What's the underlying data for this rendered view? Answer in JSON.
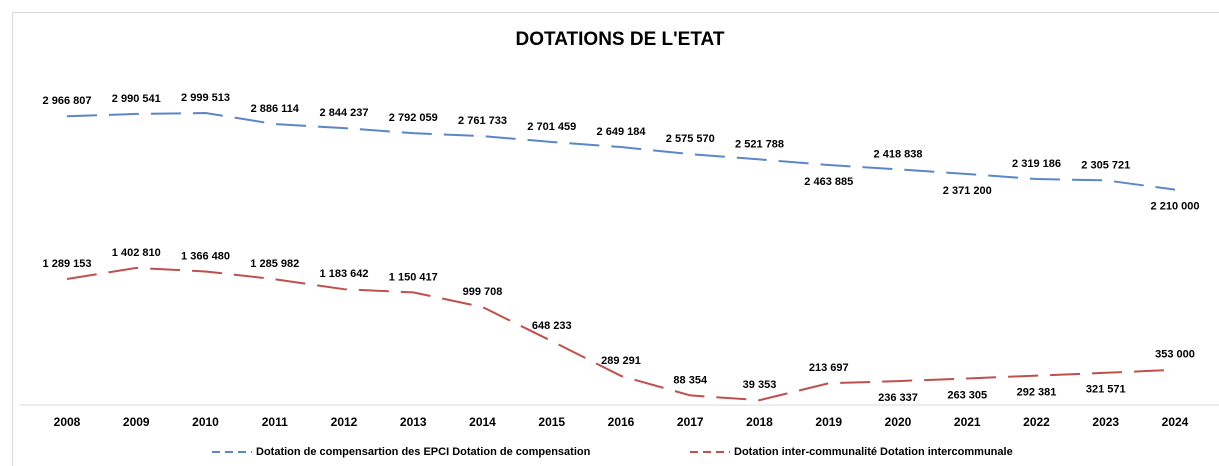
{
  "chart_data": {
    "type": "line",
    "title": "DOTATIONS DE L'ETAT",
    "categories": [
      "2008",
      "2009",
      "2010",
      "2011",
      "2012",
      "2013",
      "2014",
      "2015",
      "2016",
      "2017",
      "2018",
      "2019",
      "2020",
      "2021",
      "2022",
      "2023",
      "2024"
    ],
    "series": [
      {
        "name": "Dotation de compensartion des EPCI Dotation de compensation",
        "color": "#5b86c8",
        "values": [
          2966807,
          2990541,
          2999513,
          2886114,
          2844237,
          2792059,
          2761733,
          2701459,
          2649184,
          2575570,
          2521788,
          2463885,
          2418838,
          2371200,
          2319186,
          2305721,
          2210000
        ],
        "value_labels": [
          "2 966 807",
          "2 990 541",
          "2 999 513",
          "2 886 114",
          "2 844 237",
          "2 792 059",
          "2 761 733",
          "2 701 459",
          "2 649 184",
          "2 575 570",
          "2 521 788",
          "2 463 885",
          "2 418 838",
          "2 371 200",
          "2 319 186",
          "2 305 721",
          "2 210 000"
        ]
      },
      {
        "name": "Dotation inter-communalité Dotation intercommunale",
        "color": "#c0504d",
        "values": [
          1289153,
          1402810,
          1366480,
          1285982,
          1183642,
          1150417,
          999708,
          648233,
          289291,
          88354,
          39353,
          213697,
          236337,
          263305,
          292381,
          321571,
          353000
        ],
        "value_labels": [
          "1 289 153",
          "1 402 810",
          "1 366 480",
          "1 285 982",
          "1 183 642",
          "1 150 417",
          "999 708",
          "648 233",
          "289 291",
          "88 354",
          "39 353",
          "213 697",
          "236 337",
          "263 305",
          "292 381",
          "321 571",
          "353 000"
        ]
      }
    ],
    "legend": "bottom"
  }
}
